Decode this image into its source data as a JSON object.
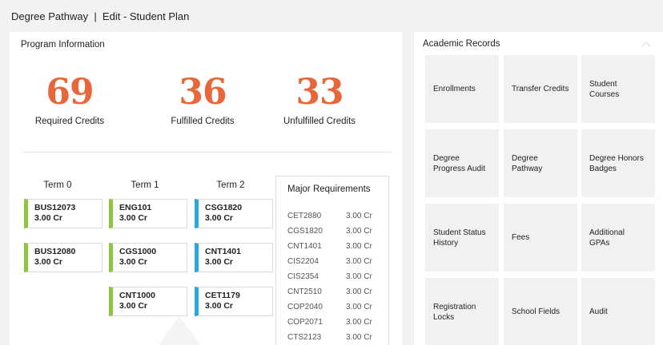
{
  "header": {
    "title": "Degree Pathway  |  Edit - Student Plan"
  },
  "program": {
    "title": "Program Information",
    "stats": [
      {
        "value": "69",
        "label": "Required Credits"
      },
      {
        "value": "36",
        "label": "Fulfilled Credits"
      },
      {
        "value": "33",
        "label": "Unfulfilled Credits"
      }
    ],
    "accent_color": "#e8673a"
  },
  "terms": [
    {
      "label": "Term 0",
      "courses": [
        {
          "code": "BUS12073",
          "credits": "3.00 Cr",
          "status": "green"
        },
        {
          "code": "BUS12080",
          "credits": "3.00 Cr",
          "status": "green"
        }
      ]
    },
    {
      "label": "Term 1",
      "courses": [
        {
          "code": "ENG101",
          "credits": "3.00 Cr",
          "status": "green"
        },
        {
          "code": "CGS1000",
          "credits": "3.00 Cr",
          "status": "green"
        },
        {
          "code": "CNT1000",
          "credits": "3.00 Cr",
          "status": "green"
        }
      ]
    },
    {
      "label": "Term 2",
      "courses": [
        {
          "code": "CSG1820",
          "credits": "3.00 Cr",
          "status": "blue"
        },
        {
          "code": "CNT1401",
          "credits": "3.00 Cr",
          "status": "blue"
        },
        {
          "code": "CET1179",
          "credits": "3.00 Cr",
          "status": "blue"
        }
      ]
    }
  ],
  "status_colors": {
    "green": "#8cc63f",
    "blue": "#29a8e0"
  },
  "major_requirements": {
    "title": "Major Requirements",
    "items": [
      {
        "code": "CET2880",
        "credits": "3.00 Cr"
      },
      {
        "code": "CGS1820",
        "credits": "3.00 Cr"
      },
      {
        "code": "CNT1401",
        "credits": "3.00 Cr"
      },
      {
        "code": "CIS2204",
        "credits": "3.00 Cr"
      },
      {
        "code": "CIS2354",
        "credits": "3.00 Cr"
      },
      {
        "code": "CNT2510",
        "credits": "3.00 Cr"
      },
      {
        "code": "COP2040",
        "credits": "3.00 Cr"
      },
      {
        "code": "COP2071",
        "credits": "3.00 Cr"
      },
      {
        "code": "CTS2123",
        "credits": "3.00 Cr"
      }
    ]
  },
  "academic_records": {
    "title": "Academic Records",
    "collapse_icon": "chevron-up-icon",
    "tiles": [
      "Enrollments",
      "Transfer Credits",
      "Student Courses",
      "Degree Progress Audit",
      "Degree Pathway",
      "Degree Honors Badges",
      "Student Status History",
      "Fees",
      "Additional GPAs",
      "Registration Locks",
      "School Fields",
      "Audit"
    ]
  }
}
